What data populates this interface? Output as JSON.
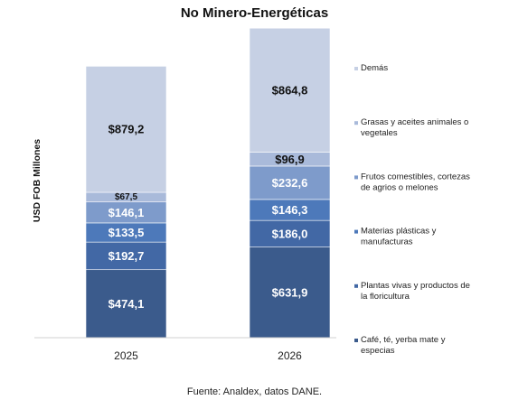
{
  "chart_data": {
    "type": "bar",
    "stacked": true,
    "title": "No Minero-Energéticas",
    "ylabel": "USD FOB Millones",
    "xlabel": "",
    "categories": [
      "2025",
      "2026"
    ],
    "series": [
      {
        "name": "Café, té, yerba mate y especias",
        "color": "#3B5B8C",
        "values": [
          474.1,
          631.9
        ],
        "labels": [
          "$474,1",
          "$631,9"
        ]
      },
      {
        "name": "Plantas vivas y productos de la floricultura",
        "color": "#4268A5",
        "values": [
          192.7,
          186.0
        ],
        "labels": [
          "$192,7",
          "$186,0"
        ]
      },
      {
        "name": "Materias plásticas y manufacturas",
        "color": "#4D79BA",
        "values": [
          133.5,
          146.3
        ],
        "labels": [
          "$133,5",
          "$146,3"
        ]
      },
      {
        "name": "Frutos comestibles, cortezas de agrios o melones",
        "color": "#7E9BCB",
        "values": [
          146.1,
          232.6
        ],
        "labels": [
          "$146,1",
          "$232,6"
        ]
      },
      {
        "name": "Grasas y aceites animales o vegetales",
        "color": "#A9BADA",
        "values": [
          67.5,
          96.9
        ],
        "labels": [
          "$67,5",
          "$96,9"
        ]
      },
      {
        "name": "Demás",
        "color": "#C6D0E4",
        "values": [
          879.2,
          864.8
        ],
        "labels": [
          "$879,2",
          "$864,8"
        ]
      }
    ],
    "legend_position": "right",
    "grid": false
  },
  "source_note": "Fuente: Analdex, datos DANE."
}
